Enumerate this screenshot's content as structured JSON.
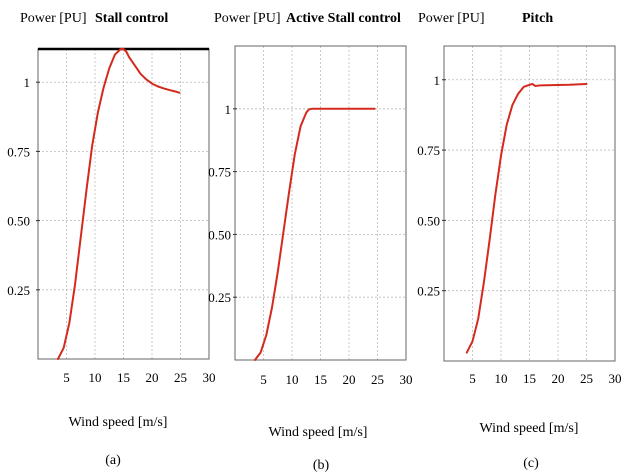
{
  "chart_data": [
    {
      "type": "line",
      "title": "Stall control",
      "ylabel": "Power [PU]",
      "xlabel": "Wind speed [m/s]",
      "caption": "(a)",
      "xlim": [
        0,
        30
      ],
      "ylim": [
        0,
        1.12
      ],
      "xticks": [
        5,
        10,
        15,
        20,
        25,
        30
      ],
      "yticks": [
        0.25,
        0.5,
        0.75,
        1
      ],
      "ytick_labels": [
        "0.25",
        "0.50",
        "0.75",
        "1"
      ],
      "grid": true,
      "series": [
        {
          "color": "#d42a1e",
          "x": [
            3.5,
            4.5,
            5.5,
            6.5,
            7.5,
            8.5,
            9.5,
            10.5,
            11.5,
            12.5,
            13.5,
            14.5,
            15.0,
            15.5,
            16.0,
            17.0,
            18.0,
            19.0,
            20.0,
            21.0,
            22.0,
            23.0,
            24.0,
            24.8
          ],
          "y": [
            0.0,
            0.04,
            0.13,
            0.27,
            0.44,
            0.61,
            0.77,
            0.89,
            0.98,
            1.05,
            1.1,
            1.12,
            1.12,
            1.11,
            1.09,
            1.06,
            1.03,
            1.01,
            0.995,
            0.985,
            0.978,
            0.972,
            0.967,
            0.962
          ]
        }
      ]
    },
    {
      "type": "line",
      "title": "Active Stall control",
      "ylabel": "Power [PU]",
      "xlabel": "Wind speed [m/s]",
      "caption": "(b)",
      "xlim": [
        0,
        30
      ],
      "ylim": [
        0,
        1.25
      ],
      "xticks": [
        5,
        10,
        15,
        20,
        25,
        30
      ],
      "yticks": [
        0.25,
        0.5,
        0.75,
        1
      ],
      "ytick_labels": [
        "0.25",
        "0.50",
        "0.75",
        "1"
      ],
      "grid": true,
      "series": [
        {
          "color": "#d42a1e",
          "x": [
            3.5,
            4.5,
            5.5,
            6.5,
            7.5,
            8.5,
            9.5,
            10.5,
            11.5,
            12.5,
            13.0,
            13.5,
            14.0,
            15.0,
            17.0,
            20.0,
            22.0,
            24.5
          ],
          "y": [
            0.0,
            0.03,
            0.1,
            0.21,
            0.35,
            0.51,
            0.67,
            0.82,
            0.93,
            0.985,
            0.998,
            1.0,
            1.0,
            1.0,
            1.0,
            1.0,
            1.0,
            1.0
          ]
        }
      ]
    },
    {
      "type": "line",
      "title": "Pitch",
      "ylabel": "Power [PU]",
      "xlabel": "Wind speed [m/s]",
      "caption": "(c)",
      "xlim": [
        0,
        30
      ],
      "ylim": [
        0,
        1.12
      ],
      "xticks": [
        5,
        10,
        15,
        20,
        25,
        30
      ],
      "yticks": [
        0.25,
        0.5,
        0.75,
        1
      ],
      "ytick_labels": [
        "0.25",
        "0.50",
        "0.75",
        "1"
      ],
      "grid": true,
      "series": [
        {
          "color": "#d42a1e",
          "x": [
            4.0,
            5.0,
            6.0,
            7.0,
            8.0,
            9.0,
            10.0,
            11.0,
            12.0,
            13.0,
            14.0,
            15.0,
            15.5,
            16.0,
            17.0,
            19.0,
            22.0,
            25.0
          ],
          "y": [
            0.03,
            0.07,
            0.15,
            0.28,
            0.43,
            0.59,
            0.73,
            0.84,
            0.91,
            0.95,
            0.975,
            0.982,
            0.985,
            0.978,
            0.98,
            0.981,
            0.982,
            0.985
          ]
        }
      ]
    }
  ]
}
